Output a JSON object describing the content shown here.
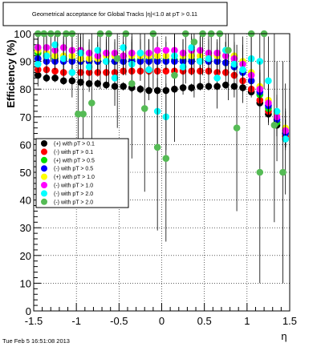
{
  "chart_data": {
    "type": "scatter",
    "title": "Geometrical acceptance for Global Tracks |η|<1.0 at pT > 0.11",
    "xlabel": "η",
    "ylabel": "Efficiency (%)",
    "xlim": [
      -1.5,
      1.5
    ],
    "ylim": [
      0,
      100
    ],
    "x_ticks": [
      "-1.5",
      "-1",
      "-0.5",
      "0",
      "0.5",
      "1",
      "1.5"
    ],
    "y_ticks": [
      "0",
      "10",
      "20",
      "30",
      "40",
      "50",
      "60",
      "70",
      "80",
      "90",
      "100"
    ],
    "grid": true,
    "legend_position": "left-middle",
    "timestamp": "Tue Feb  5 16:51:08 2013",
    "series": [
      {
        "name": "(+) with pT > 0.1",
        "color": "#000000",
        "x": [
          -1.45,
          -1.35,
          -1.25,
          -1.15,
          -1.05,
          -0.95,
          -0.85,
          -0.75,
          -0.65,
          -0.55,
          -0.45,
          -0.35,
          -0.25,
          -0.15,
          -0.05,
          0.05,
          0.15,
          0.25,
          0.35,
          0.45,
          0.55,
          0.65,
          0.75,
          0.85,
          0.95,
          1.05,
          1.15,
          1.25,
          1.35,
          1.45
        ],
        "y": [
          85,
          84,
          84,
          83,
          83,
          82.5,
          82,
          82,
          81.5,
          81,
          81,
          80.5,
          80,
          79.5,
          79.5,
          79.5,
          80,
          80.5,
          80.5,
          81,
          81,
          81,
          81.5,
          81,
          80.5,
          79,
          75,
          71,
          67,
          62
        ],
        "err": [
          1.5,
          1.5,
          1.5,
          1.5,
          1.5,
          1.5,
          1.5,
          1.5,
          1.5,
          1.5,
          1.5,
          1.5,
          1.5,
          1.5,
          1.5,
          1.5,
          1.5,
          1.5,
          1.5,
          1.5,
          1.5,
          1.5,
          1.5,
          1.5,
          1.5,
          2,
          2,
          2.5,
          3,
          3
        ]
      },
      {
        "name": "(-) with pT > 0.1",
        "color": "#ff0000",
        "x": [
          -1.45,
          -1.35,
          -1.25,
          -1.15,
          -1.05,
          -0.95,
          -0.85,
          -0.75,
          -0.65,
          -0.55,
          -0.45,
          -0.35,
          -0.25,
          -0.15,
          -0.05,
          0.05,
          0.15,
          0.25,
          0.35,
          0.45,
          0.55,
          0.65,
          0.75,
          0.85,
          0.95,
          1.05,
          1.15,
          1.25,
          1.35,
          1.45
        ],
        "y": [
          87,
          87,
          86.5,
          86,
          86,
          86,
          86,
          86,
          86,
          86,
          86.5,
          86.5,
          86.5,
          86.5,
          86.5,
          86.5,
          86.5,
          86.5,
          86.5,
          86.5,
          86.5,
          86,
          86,
          85,
          83,
          80,
          76,
          72,
          68,
          63
        ],
        "err": [
          1.5,
          1.5,
          1.5,
          1.5,
          1.5,
          1.5,
          1.5,
          1.5,
          1.5,
          1.5,
          1.5,
          1.5,
          1.5,
          1.5,
          1.5,
          1.5,
          1.5,
          1.5,
          1.5,
          1.5,
          1.5,
          1.5,
          1.5,
          1.5,
          1.5,
          2,
          2,
          2.5,
          3,
          3
        ]
      },
      {
        "name": "(+) with pT > 0.5",
        "color": "#00dd00",
        "x": [
          -1.45,
          -1.35,
          -1.25,
          -1.15,
          -1.05,
          -0.95,
          -0.85,
          -0.75,
          -0.65,
          -0.55,
          -0.45,
          -0.35,
          -0.25,
          -0.15,
          -0.05,
          0.05,
          0.15,
          0.25,
          0.35,
          0.45,
          0.55,
          0.65,
          0.75,
          0.85,
          0.95,
          1.05,
          1.15,
          1.25,
          1.35,
          1.45
        ],
        "y": [
          93,
          92,
          91,
          91,
          90.5,
          90,
          90,
          90,
          90,
          90,
          90,
          90.5,
          90.5,
          90.5,
          90.5,
          90.5,
          90.5,
          90.5,
          90.5,
          90.5,
          90.5,
          90,
          89.5,
          88,
          86,
          83,
          78,
          73,
          68,
          64
        ],
        "err": [
          3,
          3,
          3,
          3,
          3,
          3,
          3,
          3,
          3,
          3,
          3,
          3,
          3,
          3,
          3,
          3,
          3,
          3,
          3,
          3,
          3,
          3,
          3,
          3,
          3,
          4,
          4,
          5,
          5,
          5
        ]
      },
      {
        "name": "(-) with pT > 0.5",
        "color": "#0000ff",
        "x": [
          -1.45,
          -1.35,
          -1.25,
          -1.15,
          -1.05,
          -0.95,
          -0.85,
          -0.75,
          -0.65,
          -0.55,
          -0.45,
          -0.35,
          -0.25,
          -0.15,
          -0.05,
          0.05,
          0.15,
          0.25,
          0.35,
          0.45,
          0.55,
          0.65,
          0.75,
          0.85,
          0.95,
          1.05,
          1.15,
          1.25,
          1.35,
          1.45
        ],
        "y": [
          91,
          90,
          90,
          90,
          90,
          90,
          90,
          90,
          90,
          90,
          90,
          90,
          90,
          90,
          90,
          90,
          90,
          90,
          90,
          90,
          90,
          90,
          89.5,
          88,
          86,
          83,
          79,
          74,
          69,
          64
        ],
        "err": [
          3,
          3,
          3,
          3,
          3,
          3,
          3,
          3,
          3,
          3,
          3,
          3,
          3,
          3,
          3,
          3,
          3,
          3,
          3,
          3,
          3,
          3,
          3,
          3,
          3,
          4,
          4,
          5,
          5,
          5
        ]
      },
      {
        "name": "(+) with pT > 1.0",
        "color": "#ffff00",
        "x": [
          -1.45,
          -1.35,
          -1.25,
          -1.15,
          -1.05,
          -0.95,
          -0.85,
          -0.75,
          -0.65,
          -0.55,
          -0.45,
          -0.35,
          -0.25,
          -0.15,
          -0.05,
          0.05,
          0.15,
          0.25,
          0.35,
          0.45,
          0.55,
          0.65,
          0.75,
          0.85,
          0.95,
          1.05,
          1.15,
          1.25,
          1.35,
          1.45
        ],
        "y": [
          94,
          93,
          92,
          92,
          92,
          91,
          91,
          91,
          92,
          92,
          92,
          92,
          92,
          92,
          92,
          92,
          92,
          92,
          92,
          92,
          92,
          92,
          92,
          92,
          90,
          86,
          81,
          76,
          71,
          66
        ],
        "err": [
          5,
          5,
          5,
          5,
          5,
          5,
          5,
          5,
          5,
          5,
          5,
          5,
          5,
          5,
          5,
          5,
          5,
          5,
          5,
          5,
          5,
          5,
          5,
          5,
          6,
          6,
          6,
          7,
          7,
          7
        ]
      },
      {
        "name": "(-) with pT > 1.0",
        "color": "#ff00ff",
        "x": [
          -1.45,
          -1.35,
          -1.25,
          -1.15,
          -1.05,
          -0.95,
          -0.85,
          -0.75,
          -0.65,
          -0.55,
          -0.45,
          -0.35,
          -0.25,
          -0.15,
          -0.05,
          0.05,
          0.15,
          0.25,
          0.35,
          0.45,
          0.55,
          0.65,
          0.75,
          0.85,
          0.95,
          1.05,
          1.15,
          1.25,
          1.35,
          1.45
        ],
        "y": [
          95,
          95,
          94,
          95,
          94,
          94,
          93,
          92,
          93,
          93,
          92,
          93,
          93,
          93,
          94,
          94,
          94,
          93,
          94,
          94,
          93,
          93,
          92,
          91,
          89,
          85,
          80,
          75,
          70,
          65
        ],
        "err": [
          5,
          5,
          5,
          5,
          5,
          5,
          5,
          5,
          5,
          5,
          5,
          5,
          5,
          5,
          5,
          5,
          5,
          5,
          5,
          5,
          5,
          5,
          5,
          5,
          6,
          6,
          6,
          7,
          7,
          7
        ]
      },
      {
        "name": "(-) with pT > 2.0",
        "color": "#00ffff",
        "x": [
          -1.45,
          -1.35,
          -1.25,
          -1.15,
          -1.05,
          -0.95,
          -0.85,
          -0.75,
          -0.65,
          -0.55,
          -0.45,
          -0.35,
          -0.25,
          -0.15,
          -0.05,
          0.05,
          0.15,
          0.25,
          0.35,
          0.45,
          0.55,
          0.65,
          0.75,
          0.85,
          0.95,
          1.05,
          1.15,
          1.25,
          1.35,
          1.45
        ],
        "y": [
          89,
          92,
          96,
          91,
          86,
          93,
          88,
          94,
          90,
          84,
          95,
          89,
          93,
          87,
          72,
          70,
          92,
          88,
          95,
          90,
          91,
          84,
          94,
          89,
          87,
          91,
          90,
          83,
          72,
          62
        ],
        "err": [
          8,
          8,
          8,
          8,
          9,
          9,
          9,
          9,
          9,
          10,
          10,
          10,
          10,
          11,
          12,
          12,
          10,
          10,
          10,
          10,
          10,
          11,
          11,
          12,
          12,
          13,
          14,
          16,
          18,
          20
        ]
      },
      {
        "name": "(-) with pT > 2.0",
        "color": "#55bb55",
        "x": [
          -1.45,
          -1.38,
          -1.3,
          -1.22,
          -1.12,
          -1.05,
          -0.98,
          -0.92,
          -0.82,
          -0.72,
          -0.62,
          -0.52,
          -0.42,
          -0.35,
          -0.2,
          -0.1,
          -0.05,
          0.05,
          0.15,
          0.28,
          0.38,
          0.48,
          0.58,
          0.68,
          0.78,
          0.88,
          1.05,
          1.15,
          1.2,
          1.32,
          1.42
        ],
        "y": [
          100,
          100,
          100,
          100,
          100,
          100,
          71,
          71,
          75,
          100,
          100,
          91,
          100,
          82,
          73,
          100,
          59,
          55,
          85,
          100,
          97,
          100,
          100,
          100,
          94,
          66,
          100,
          50,
          100,
          67,
          50
        ],
        "err": [
          10,
          10,
          10,
          10,
          10,
          10,
          30,
          30,
          26,
          20,
          18,
          25,
          15,
          27,
          30,
          20,
          30,
          30,
          24,
          18,
          20,
          15,
          14,
          14,
          18,
          30,
          20,
          40,
          20,
          35,
          40
        ]
      }
    ]
  }
}
